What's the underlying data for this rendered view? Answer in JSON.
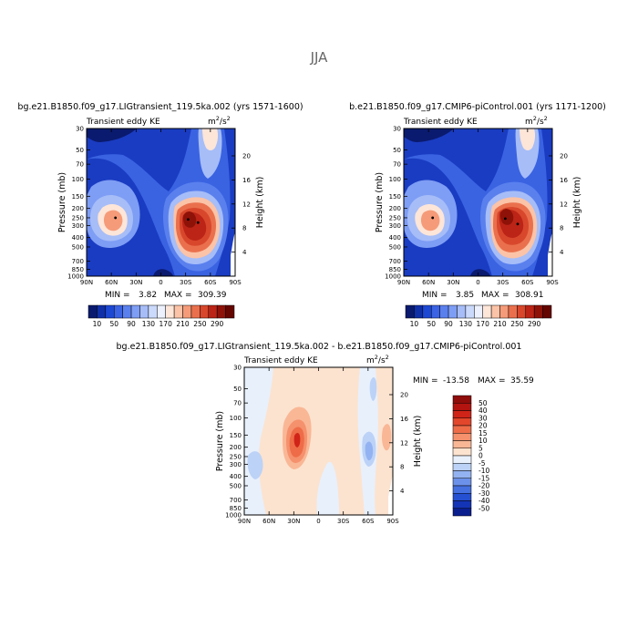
{
  "page": {
    "season": "JJA"
  },
  "chart_data": [
    {
      "type": "heatmap",
      "title": "bg.e21.B1850.f09_g17.LIGtransient_119.5ka.002 (yrs 1571-1600)",
      "left_label": "Transient eddy KE",
      "units_base": "m",
      "units_exp1": "2",
      "units_mid": "/s",
      "units_exp2": "2",
      "ylabel": "Pressure (mb)",
      "ylabel_right": "Height (km)",
      "x_ticks": [
        "90N",
        "60N",
        "30N",
        "0",
        "30S",
        "60S",
        "90S"
      ],
      "x_values": [
        90,
        60,
        30,
        0,
        -30,
        -60,
        -90
      ],
      "y_ticks": [
        "30",
        "50",
        "70",
        "100",
        "150",
        "200",
        "250",
        "300",
        "400",
        "500",
        "700",
        "850",
        "1000"
      ],
      "y_values": [
        30,
        50,
        70,
        100,
        150,
        200,
        250,
        300,
        400,
        500,
        700,
        850,
        1000
      ],
      "height_ticks": [
        "4",
        "8",
        "12",
        "16",
        "20"
      ],
      "height_values": [
        4,
        8,
        12,
        16,
        20
      ],
      "min_label": "MIN =",
      "min_value": "3.82",
      "max_label": "MAX =",
      "max_value": "309.39",
      "maxima": [
        {
          "lat": 55,
          "p": 250,
          "value": 140
        },
        {
          "lat": -33,
          "p": 260,
          "value": 305
        },
        {
          "lat": -45,
          "p": 280,
          "value": 290
        }
      ],
      "colorbar": {
        "labels": [
          "10",
          "50",
          "90",
          "130",
          "170",
          "210",
          "250",
          "290"
        ],
        "colors": [
          "#0a1a6e",
          "#1030a8",
          "#1d48d4",
          "#3b63e3",
          "#5a80ee",
          "#7e9df4",
          "#a6bdf8",
          "#cbd9fb",
          "#ecf1fd",
          "#fde5d8",
          "#fbc3a7",
          "#f59b79",
          "#ea704d",
          "#d8472c",
          "#bb2416",
          "#8f1208",
          "#650500"
        ]
      }
    },
    {
      "type": "heatmap",
      "title": "b.e21.B1850.f09_g17.CMIP6-piControl.001 (yrs 1171-1200)",
      "left_label": "Transient eddy KE",
      "units_base": "m",
      "units_exp1": "2",
      "units_mid": "/s",
      "units_exp2": "2",
      "ylabel": "Pressure (mb)",
      "ylabel_right": "Height (km)",
      "x_ticks": [
        "90N",
        "60N",
        "30N",
        "0",
        "30S",
        "60S",
        "90S"
      ],
      "x_values": [
        90,
        60,
        30,
        0,
        -30,
        -60,
        -90
      ],
      "y_ticks": [
        "30",
        "50",
        "70",
        "100",
        "150",
        "200",
        "250",
        "300",
        "400",
        "500",
        "700",
        "850",
        "1000"
      ],
      "y_values": [
        30,
        50,
        70,
        100,
        150,
        200,
        250,
        300,
        400,
        500,
        700,
        850,
        1000
      ],
      "height_ticks": [
        "4",
        "8",
        "12",
        "16",
        "20"
      ],
      "height_values": [
        4,
        8,
        12,
        16,
        20
      ],
      "min_label": "MIN =",
      "min_value": "3.85",
      "max_label": "MAX =",
      "max_value": "308.91",
      "maxima": [
        {
          "lat": 55,
          "p": 250,
          "value": 140
        },
        {
          "lat": -33,
          "p": 255,
          "value": 305
        },
        {
          "lat": -48,
          "p": 290,
          "value": 290
        }
      ],
      "colorbar": {
        "labels": [
          "10",
          "50",
          "90",
          "130",
          "170",
          "210",
          "250",
          "290"
        ],
        "colors": [
          "#0a1a6e",
          "#1030a8",
          "#1d48d4",
          "#3b63e3",
          "#5a80ee",
          "#7e9df4",
          "#a6bdf8",
          "#cbd9fb",
          "#ecf1fd",
          "#fde5d8",
          "#fbc3a7",
          "#f59b79",
          "#ea704d",
          "#d8472c",
          "#bb2416",
          "#8f1208",
          "#650500"
        ]
      }
    },
    {
      "type": "heatmap",
      "title": "bg.e21.B1850.f09_g17.LIGtransient_119.5ka.002 - b.e21.B1850.f09_g17.CMIP6-piControl.001",
      "left_label": "Transient eddy KE",
      "units_base": "m",
      "units_exp1": "2",
      "units_mid": "/s",
      "units_exp2": "2",
      "ylabel": "Pressure (mb)",
      "ylabel_right": "Height (km)",
      "x_ticks": [
        "90N",
        "60N",
        "30N",
        "0",
        "30S",
        "60S",
        "90S"
      ],
      "x_values": [
        90,
        60,
        30,
        0,
        -30,
        -60,
        -90
      ],
      "y_ticks": [
        "30",
        "50",
        "70",
        "100",
        "150",
        "200",
        "250",
        "300",
        "400",
        "500",
        "700",
        "850",
        "1000"
      ],
      "y_values": [
        30,
        50,
        70,
        100,
        150,
        200,
        250,
        300,
        400,
        500,
        700,
        850,
        1000
      ],
      "height_ticks": [
        "4",
        "8",
        "12",
        "16",
        "20"
      ],
      "height_values": [
        4,
        8,
        12,
        16,
        20
      ],
      "min_label": "MIN =",
      "min_value": "-13.58",
      "max_label": "MAX =",
      "max_value": "35.59",
      "colorbar": {
        "labels": [
          "50",
          "40",
          "30",
          "20",
          "15",
          "10",
          "5",
          "0",
          "-5",
          "-10",
          "-15",
          "-20",
          "-30",
          "-40",
          "-50"
        ],
        "colors": [
          "#8f0d0a",
          "#b31410",
          "#d02418",
          "#e2462b",
          "#ee6c48",
          "#f5916d",
          "#f9b796",
          "#fce3cf",
          "#e8f0fc",
          "#bcd2f7",
          "#93b2f1",
          "#6c91ea",
          "#4570e0",
          "#2550d2",
          "#1434b6",
          "#0a1e8e"
        ]
      }
    }
  ]
}
